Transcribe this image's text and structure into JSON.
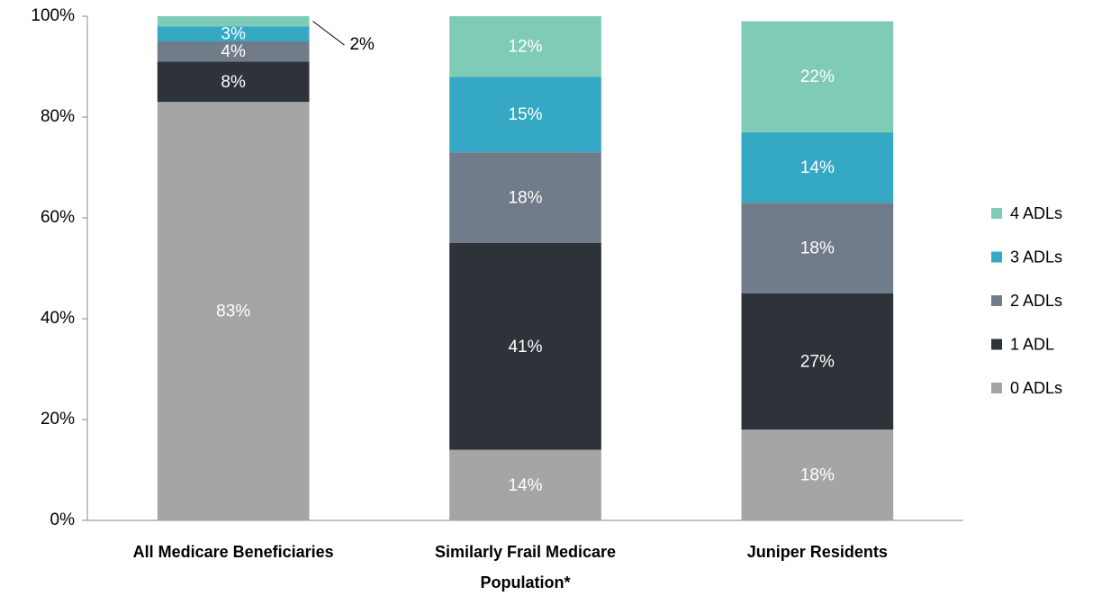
{
  "chart_data": {
    "type": "stacked_bar",
    "categories": [
      "All Medicare Beneficiaries",
      "Similarly Frail Medicare Population*",
      "Juniper Residents"
    ],
    "series": [
      {
        "name": "0 ADLs",
        "color": "#a5a5a5",
        "values": [
          83,
          14,
          18
        ],
        "value_labels": [
          "83%",
          "14%",
          "18%"
        ]
      },
      {
        "name": "1 ADL",
        "color": "#2e3239",
        "values": [
          8,
          41,
          27
        ],
        "value_labels": [
          "8%",
          "41%",
          "27%"
        ]
      },
      {
        "name": "2 ADLs",
        "color": "#717c8b",
        "values": [
          4,
          18,
          18
        ],
        "value_labels": [
          "4%",
          "18%",
          "18%"
        ]
      },
      {
        "name": "3 ADLs",
        "color": "#35a8c4",
        "values": [
          3,
          15,
          14
        ],
        "value_labels": [
          "3%",
          "15%",
          "14%"
        ]
      },
      {
        "name": "4 ADLs",
        "color": "#7fcbb6",
        "values": [
          2,
          12,
          22
        ],
        "value_labels": [
          "2%",
          "12%",
          "22%"
        ]
      }
    ],
    "ylim": [
      0,
      100
    ],
    "yticks": [
      {
        "value": 0,
        "label": "0%"
      },
      {
        "value": 20,
        "label": "20%"
      },
      {
        "value": 40,
        "label": "40%"
      },
      {
        "value": 60,
        "label": "60%"
      },
      {
        "value": 80,
        "label": "80%"
      },
      {
        "value": 100,
        "label": "100%"
      }
    ],
    "grid": false,
    "legend": "right"
  }
}
